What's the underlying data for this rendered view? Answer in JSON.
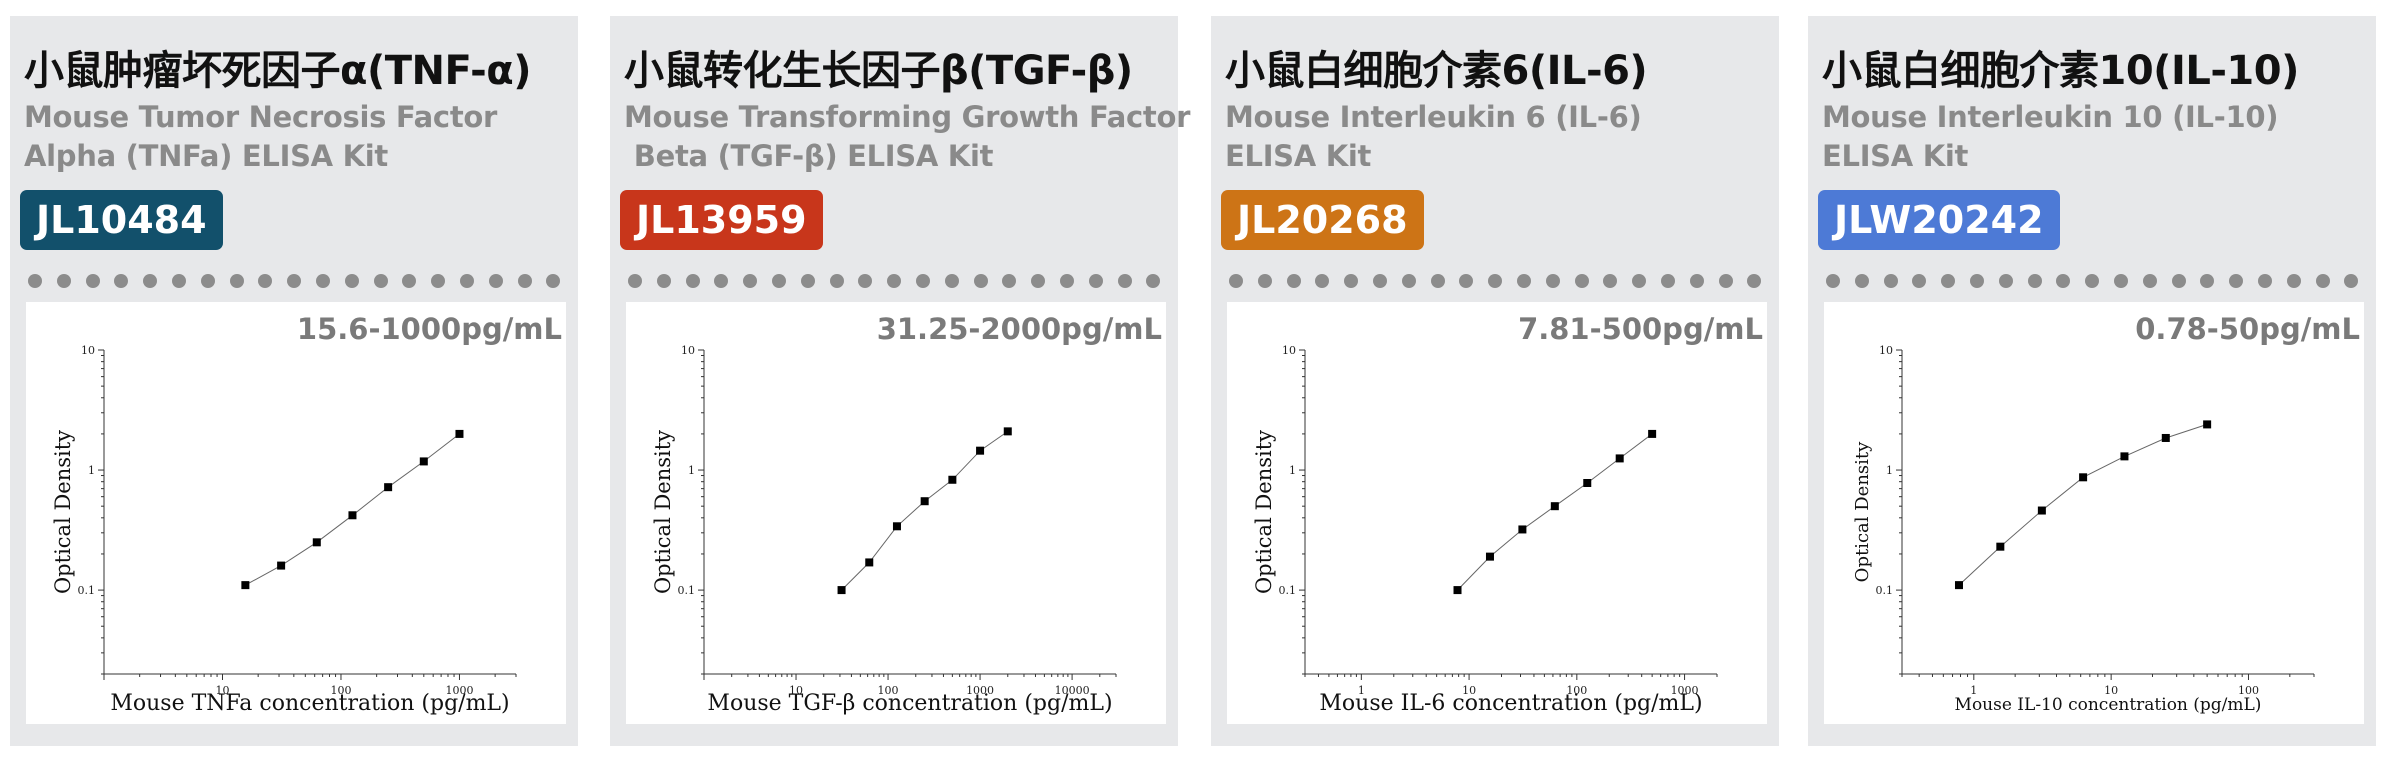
{
  "cards": [
    {
      "title_cn": "小鼠肿瘤坏死因子α(TNF-α)",
      "title_en": "Mouse Tumor Necrosis Factor\nAlpha (TNFa) ELISA Kit",
      "code": "JL10484",
      "code_color": "#12506b",
      "range": "15.6-1000pg/mL"
    },
    {
      "title_cn": "小鼠转化生长因子β(TGF-β)",
      "title_en": "Mouse Transforming Growth Factor\n Beta (TGF-β) ELISA Kit",
      "code": "JL13959",
      "code_color": "#c8361b",
      "range": "31.25-2000pg/mL"
    },
    {
      "title_cn": "小鼠白细胞介素6(IL-6)",
      "title_en": "Mouse Interleukin 6 (IL-6)\nELISA Kit",
      "code": "JL20268",
      "code_color": "#cd7416",
      "range": "7.81-500pg/mL"
    },
    {
      "title_cn": "小鼠白细胞介素10(IL-10)",
      "title_en": "Mouse Interleukin 10 (IL-10)\nELISA Kit",
      "code": "JLW20242",
      "code_color": "#4d7ad6",
      "range": "0.78-50pg/mL"
    }
  ],
  "chart_data": [
    {
      "type": "scatter",
      "xlabel": "Mouse TNFa concentration (pg/mL)",
      "ylabel": "Optical Density",
      "x_scale": "log",
      "y_scale": "log",
      "xlim": [
        1,
        3000
      ],
      "ylim": [
        0.02,
        10
      ],
      "x_ticks": [
        "10",
        "100",
        "1000"
      ],
      "y_ticks": [
        "0.1",
        "1",
        "10"
      ],
      "x": [
        15.6,
        31.25,
        62.5,
        125,
        250,
        500,
        1000
      ],
      "y": [
        0.11,
        0.16,
        0.25,
        0.42,
        0.72,
        1.18,
        2.0
      ]
    },
    {
      "type": "scatter",
      "xlabel": "Mouse TGF-β concentration (pg/mL)",
      "ylabel": "Optical Density",
      "x_scale": "log",
      "y_scale": "log",
      "xlim": [
        1,
        30000
      ],
      "ylim": [
        0.02,
        10
      ],
      "x_ticks": [
        "10",
        "100",
        "1000",
        "10000"
      ],
      "y_ticks": [
        "0.1",
        "1",
        "10"
      ],
      "x": [
        31.25,
        62.5,
        125,
        250,
        500,
        1000,
        2000
      ],
      "y": [
        0.1,
        0.17,
        0.34,
        0.55,
        0.83,
        1.45,
        2.1
      ]
    },
    {
      "type": "scatter",
      "xlabel": "Mouse IL-6 concentration (pg/mL)",
      "ylabel": "Optical Density",
      "x_scale": "log",
      "y_scale": "log",
      "xlim": [
        0.3,
        2000
      ],
      "ylim": [
        0.02,
        10
      ],
      "x_ticks": [
        "1",
        "10",
        "100",
        "1000"
      ],
      "y_ticks": [
        "0.1",
        "1",
        "10"
      ],
      "x": [
        7.81,
        15.63,
        31.25,
        62.5,
        125,
        250,
        500
      ],
      "y": [
        0.1,
        0.19,
        0.32,
        0.5,
        0.78,
        1.25,
        2.0
      ]
    },
    {
      "type": "scatter",
      "xlabel": "Mouse IL-10 concentration (pg/mL)",
      "ylabel": "Optical Density",
      "x_scale": "log",
      "y_scale": "log",
      "xlim": [
        0.3,
        300
      ],
      "ylim": [
        0.02,
        10
      ],
      "x_ticks": [
        "1",
        "10",
        "100"
      ],
      "y_ticks": [
        "0.1",
        "1",
        "10"
      ],
      "x": [
        0.78,
        1.56,
        3.13,
        6.25,
        12.5,
        25,
        50
      ],
      "y": [
        0.11,
        0.23,
        0.46,
        0.87,
        1.3,
        1.85,
        2.4
      ]
    }
  ]
}
